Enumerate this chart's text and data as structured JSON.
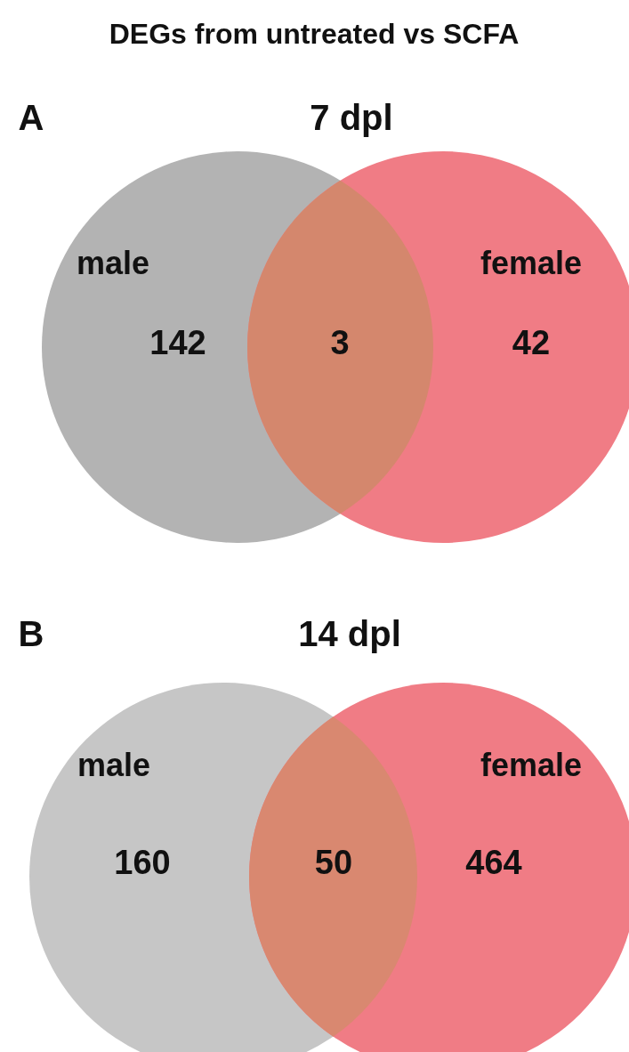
{
  "chart_data": [
    {
      "type": "other",
      "title": "DEGs from untreated vs SCFA",
      "subtitle": "7 dpl",
      "annotations": [
        "A"
      ],
      "categories": [
        "male",
        null,
        "female"
      ],
      "values": [
        142,
        3,
        42
      ],
      "colors": [
        "#b3b3b3",
        "#d4876d",
        "#f07c85"
      ],
      "data_labels": true
    },
    {
      "type": "other",
      "title": "14 dpl",
      "annotations": [
        "B"
      ],
      "categories": [
        "male",
        null,
        "female"
      ],
      "values": [
        160,
        50,
        464
      ],
      "colors": [
        "#c6c6c6",
        "#d98870",
        "#f07c85"
      ],
      "data_labels": true
    }
  ]
}
